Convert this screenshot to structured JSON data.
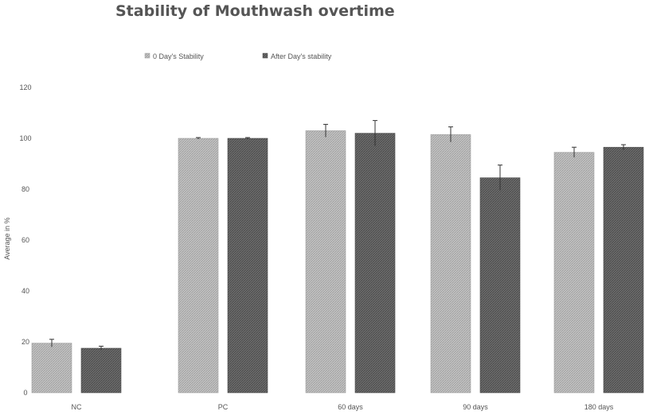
{
  "chart_data": {
    "type": "bar",
    "title": "Stability of Mouthwash overtime",
    "xlabel": "",
    "ylabel": "Average in %",
    "ylim": [
      0,
      120
    ],
    "yticks": [
      0,
      20,
      40,
      60,
      80,
      100,
      120
    ],
    "grid": false,
    "legend_position": "top-center",
    "categories": [
      "NC",
      "PC",
      "60 days",
      "90 days",
      "180 days"
    ],
    "series": [
      {
        "name": "0 Day's Stability",
        "values": [
          19.5,
          100,
          103,
          101.5,
          94.5
        ],
        "errors": [
          1.5,
          0.3,
          2.5,
          3,
          2
        ],
        "color": "#b0b0b0"
      },
      {
        "name": "After Day's stability",
        "values": [
          17.5,
          100,
          102,
          84.5,
          96.5
        ],
        "errors": [
          0.8,
          0.3,
          5,
          5,
          1
        ],
        "color": "#5a5a5a"
      }
    ]
  }
}
